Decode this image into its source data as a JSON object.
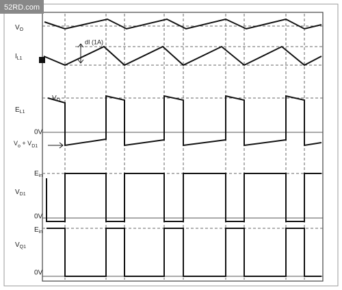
{
  "watermark": "52RD.com",
  "labels": {
    "vo": {
      "main": "V",
      "sub": "O"
    },
    "il1": {
      "main": "I",
      "sub": "L1"
    },
    "di": "dI (1A)",
    "el1": {
      "main": "E",
      "sub": "L1"
    },
    "el1_top": {
      "main": "V",
      "sub": "O"
    },
    "el1_zero": "0V",
    "el1_bottom": {
      "main": "V",
      "sub": "o",
      "mid": " + V",
      "sub2": "D1"
    },
    "vd1_top": {
      "main": "E",
      "sub": "in"
    },
    "vd1": {
      "main": "V",
      "sub": "D1"
    },
    "vd1_zero": "0V",
    "vq1_top": {
      "main": "E",
      "sub": "in"
    },
    "vq1": {
      "main": "V",
      "sub": "Q1"
    },
    "vq1_zero": "0V"
  }
}
